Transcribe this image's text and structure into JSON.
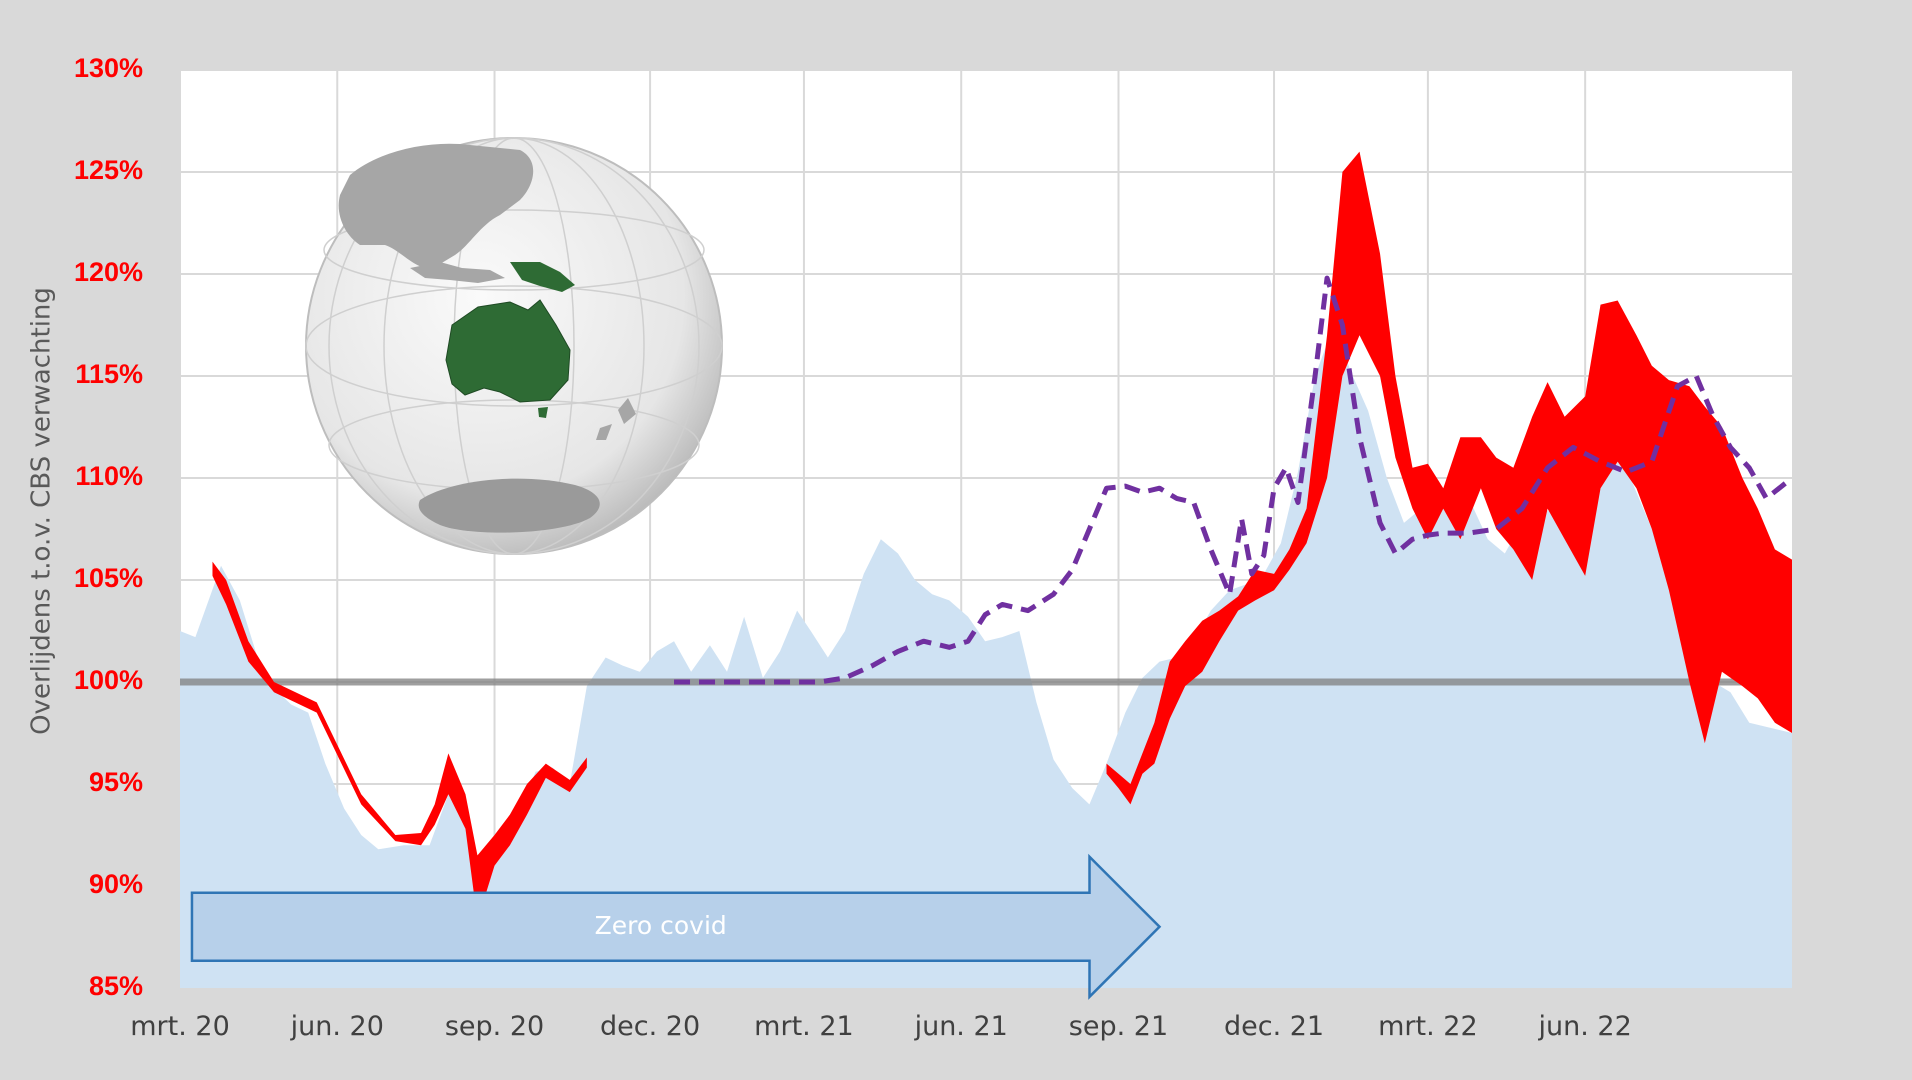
{
  "chart_data": {
    "type": "area",
    "ylabel": "Overlijdens t.o.v. CBS verwachting",
    "xlabel": "",
    "ylim": [
      85,
      130
    ],
    "y_ticks": [
      "85%",
      "90%",
      "95%",
      "100%",
      "105%",
      "110%",
      "115%",
      "120%",
      "125%",
      "130%"
    ],
    "x_ticks": [
      "mrt. 20",
      "jun. 20",
      "sep. 20",
      "dec. 20",
      "mrt. 21",
      "jun. 21",
      "sep. 21",
      "dec. 21",
      "mrt. 22",
      "jun. 22"
    ],
    "x_start": "2020-03-01",
    "x_end": "2022-09-30",
    "grid": true,
    "baseline": 100,
    "series": [
      {
        "style": "area",
        "color": "#cfe2f3",
        "x": [
          "2020-03-01",
          "2020-03-10",
          "2020-03-25",
          "2020-04-05",
          "2020-04-15",
          "2020-04-25",
          "2020-05-05",
          "2020-05-15",
          "2020-05-25",
          "2020-06-05",
          "2020-06-15",
          "2020-06-25",
          "2020-07-10",
          "2020-07-25",
          "2020-08-05",
          "2020-08-15",
          "2020-08-25",
          "2020-09-05",
          "2020-09-15",
          "2020-09-25",
          "2020-10-05",
          "2020-10-15",
          "2020-10-25",
          "2020-11-05",
          "2020-11-15",
          "2020-11-25",
          "2020-12-05",
          "2020-12-15",
          "2020-12-25",
          "2021-01-05",
          "2021-01-15",
          "2021-01-25",
          "2021-02-05",
          "2021-02-15",
          "2021-02-25",
          "2021-03-05",
          "2021-03-15",
          "2021-03-25",
          "2021-04-05",
          "2021-04-15",
          "2021-04-25",
          "2021-05-05",
          "2021-05-15",
          "2021-05-25",
          "2021-06-05",
          "2021-06-15",
          "2021-06-25",
          "2021-07-05",
          "2021-07-15",
          "2021-07-25",
          "2021-08-05",
          "2021-08-15",
          "2021-08-25",
          "2021-09-05",
          "2021-09-15",
          "2021-09-25",
          "2021-10-05",
          "2021-10-15",
          "2021-10-25",
          "2021-11-05",
          "2021-11-15",
          "2021-11-25",
          "2021-12-05",
          "2021-12-15",
          "2021-12-25",
          "2022-01-05",
          "2022-01-15",
          "2022-01-25",
          "2022-02-05",
          "2022-02-15",
          "2022-02-25",
          "2022-03-05",
          "2022-03-15",
          "2022-03-25",
          "2022-04-05",
          "2022-04-15",
          "2022-04-25",
          "2022-05-05",
          "2022-05-15",
          "2022-05-25",
          "2022-06-05",
          "2022-06-15",
          "2022-06-25",
          "2022-07-05",
          "2022-07-15",
          "2022-07-25",
          "2022-08-05",
          "2022-08-15",
          "2022-08-25",
          "2022-09-05",
          "2022-09-15",
          "2022-09-30"
        ],
        "values": [
          102.5,
          102.2,
          105.7,
          104.0,
          101.3,
          99.7,
          98.9,
          98.5,
          96.0,
          93.8,
          92.5,
          91.8,
          92.0,
          92.0,
          94.5,
          92.8,
          90.8,
          91.8,
          93.5,
          95.6,
          95.8,
          95.0,
          99.8,
          101.2,
          100.8,
          100.5,
          101.5,
          102.0,
          100.5,
          101.8,
          100.5,
          103.2,
          100.2,
          101.5,
          103.5,
          102.5,
          101.2,
          102.5,
          105.3,
          107.0,
          106.3,
          105.0,
          104.3,
          104.0,
          103.2,
          102.0,
          102.2,
          102.5,
          99.0,
          96.2,
          94.8,
          94.0,
          96.0,
          98.5,
          100.2,
          101.0,
          101.2,
          102.0,
          103.5,
          104.5,
          104.8,
          105.3,
          106.8,
          110.3,
          115.0,
          117.5,
          115.2,
          113.3,
          110.0,
          107.8,
          108.5,
          108.0,
          110.0,
          109.0,
          107.0,
          106.3,
          107.8,
          108.5,
          108.3,
          110.0,
          110.5,
          111.5,
          110.5,
          108.5,
          106.5,
          104.0,
          100.5,
          100.0,
          99.5,
          98.0,
          97.8,
          97.5
        ]
      },
      {
        "style": "band",
        "color": "#ff0000",
        "x": [
          "2020-03-20",
          "2020-03-28",
          "2020-04-10",
          "2020-04-25",
          "2020-05-20",
          "2020-06-15",
          "2020-07-05",
          "2020-07-20",
          "2020-07-28",
          "2020-08-05",
          "2020-08-15",
          "2020-08-22",
          "2020-09-01",
          "2020-09-10",
          "2020-09-20",
          "2020-10-01",
          "2020-10-15",
          "2020-10-25"
        ],
        "lower": [
          105.2,
          103.8,
          101.0,
          99.5,
          98.5,
          94.0,
          92.2,
          92.0,
          93.0,
          94.5,
          92.8,
          88.3,
          91.0,
          92.0,
          93.5,
          95.3,
          94.6,
          95.8
        ],
        "upper": [
          105.9,
          105.0,
          102.0,
          100.0,
          99.0,
          94.5,
          92.5,
          92.6,
          94.0,
          96.5,
          94.5,
          91.5,
          92.5,
          93.5,
          95.0,
          96.0,
          95.2,
          96.3
        ]
      },
      {
        "style": "band",
        "color": "#ff0000",
        "x": [
          "2021-08-25",
          "2021-09-01",
          "2021-09-08",
          "2021-09-15",
          "2021-09-22",
          "2021-10-01",
          "2021-10-10",
          "2021-10-20",
          "2021-10-30",
          "2021-11-10",
          "2021-11-20",
          "2021-12-01",
          "2021-12-10",
          "2021-12-20",
          "2022-01-01",
          "2022-01-10",
          "2022-01-20",
          "2022-02-01",
          "2022-02-10",
          "2022-02-20",
          "2022-03-01",
          "2022-03-10",
          "2022-03-20",
          "2022-04-01",
          "2022-04-10",
          "2022-04-20",
          "2022-05-01",
          "2022-05-10",
          "2022-05-20",
          "2022-06-01",
          "2022-06-10",
          "2022-06-20",
          "2022-07-01",
          "2022-07-10",
          "2022-07-20",
          "2022-08-01",
          "2022-08-10",
          "2022-08-20",
          "2022-09-01",
          "2022-09-10",
          "2022-09-20",
          "2022-09-30"
        ],
        "lower": [
          95.5,
          94.8,
          94.0,
          95.5,
          96.0,
          98.2,
          99.8,
          100.5,
          102.0,
          103.5,
          104.0,
          104.5,
          105.5,
          106.8,
          110.0,
          115.0,
          117.0,
          115.0,
          111.0,
          108.5,
          107.0,
          108.5,
          107.0,
          109.5,
          107.5,
          106.5,
          105.0,
          108.5,
          107.0,
          105.2,
          109.5,
          110.8,
          109.5,
          107.5,
          104.5,
          100.0,
          97.0,
          100.5,
          99.8,
          99.2,
          98.0,
          97.5
        ],
        "upper": [
          96.0,
          95.5,
          95.0,
          96.5,
          98.0,
          101.0,
          102.0,
          103.0,
          103.5,
          104.2,
          105.5,
          105.3,
          106.5,
          108.5,
          117.0,
          125.0,
          126.0,
          121.0,
          115.0,
          110.5,
          110.7,
          109.5,
          112.0,
          112.0,
          111.0,
          110.5,
          113.0,
          114.7,
          113.0,
          114.0,
          118.5,
          118.7,
          117.0,
          115.5,
          114.8,
          114.5,
          113.5,
          112.5,
          110.0,
          108.5,
          106.5,
          106.0
        ]
      },
      {
        "style": "dashed",
        "color": "#7030a0",
        "x": [
          "2020-12-15",
          "2020-12-25",
          "2021-01-10",
          "2021-01-25",
          "2021-02-10",
          "2021-02-25",
          "2021-03-10",
          "2021-03-25",
          "2021-04-10",
          "2021-04-25",
          "2021-05-10",
          "2021-05-25",
          "2021-06-05",
          "2021-06-15",
          "2021-06-25",
          "2021-07-10",
          "2021-07-25",
          "2021-08-05",
          "2021-08-15",
          "2021-08-25",
          "2021-09-05",
          "2021-09-15",
          "2021-09-25",
          "2021-10-05",
          "2021-10-15",
          "2021-10-25",
          "2021-11-05",
          "2021-11-12",
          "2021-11-18",
          "2021-11-25",
          "2021-12-01",
          "2021-12-08",
          "2021-12-15",
          "2021-12-25",
          "2022-01-01",
          "2022-01-10",
          "2022-01-20",
          "2022-02-01",
          "2022-02-10",
          "2022-02-20",
          "2022-03-01",
          "2022-03-10",
          "2022-03-25",
          "2022-04-10",
          "2022-04-25",
          "2022-05-10",
          "2022-05-25",
          "2022-06-10",
          "2022-06-25",
          "2022-07-10",
          "2022-07-25",
          "2022-08-05",
          "2022-08-15",
          "2022-08-25",
          "2022-09-05",
          "2022-09-15",
          "2022-09-30"
        ],
        "values": [
          100.0,
          100.0,
          100.0,
          100.0,
          100.0,
          100.0,
          100.0,
          100.2,
          100.8,
          101.5,
          102.0,
          101.7,
          102.0,
          103.3,
          103.8,
          103.5,
          104.3,
          105.5,
          107.5,
          109.5,
          109.6,
          109.3,
          109.5,
          109.0,
          108.8,
          106.5,
          104.3,
          108.0,
          105.3,
          106.2,
          109.5,
          110.5,
          108.8,
          115.0,
          119.8,
          117.5,
          112.0,
          107.8,
          106.3,
          107.0,
          107.2,
          107.3,
          107.3,
          107.5,
          108.5,
          110.5,
          111.5,
          110.8,
          110.3,
          110.8,
          114.5,
          115.0,
          113.0,
          111.5,
          110.5,
          109.0,
          110.0
        ]
      }
    ],
    "annotations": [
      {
        "text": "Zero covid",
        "style": "arrow",
        "color": "#9dc3e6",
        "x_from": "2020-03-08",
        "x_to": "2021-09-25",
        "y": 88.0
      }
    ],
    "inset_image": "globe-australia-highlighted"
  }
}
